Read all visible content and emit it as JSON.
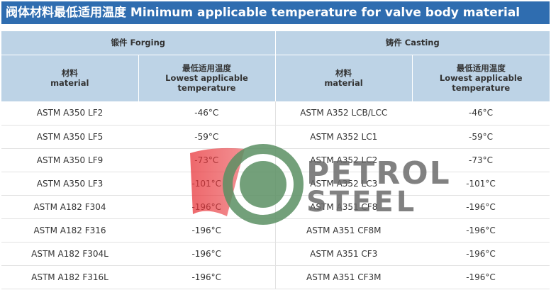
{
  "title": "阀体材料最低适用温度  Minimum applicable temperature for valve body material",
  "colors": {
    "title_bg": "#2f6db0",
    "header_bg": "#bdd3e6"
  },
  "groups": {
    "forging": "锻件 Forging",
    "casting": "铸件 Casting"
  },
  "subheaders": {
    "material_cn": "材料",
    "material_en": "material",
    "temp_cn": "最低适用温度",
    "temp_en_1": "Lowest applicable",
    "temp_en_2": "temperature"
  },
  "rows": [
    {
      "forging_material": "ASTM A350 LF2",
      "forging_temp": "-46°C",
      "casting_material": "ASTM A352 LCB/LCC",
      "casting_temp": "-46°C"
    },
    {
      "forging_material": "ASTM A350 LF5",
      "forging_temp": "-59°C",
      "casting_material": "ASTM A352 LC1",
      "casting_temp": "-59°C"
    },
    {
      "forging_material": "ASTM A350 LF9",
      "forging_temp": "-73°C",
      "casting_material": "ASTM A352 LC2",
      "casting_temp": "-73°C"
    },
    {
      "forging_material": "ASTM A350 LF3",
      "forging_temp": "-101°C",
      "casting_material": "ASTM A352 LC3",
      "casting_temp": "-101°C"
    },
    {
      "forging_material": "ASTM A182 F304",
      "forging_temp": "-196°C",
      "casting_material": "ASTM A351 CF8",
      "casting_temp": "-196°C"
    },
    {
      "forging_material": "ASTM A182 F316",
      "forging_temp": "-196°C",
      "casting_material": "ASTM A351 CF8M",
      "casting_temp": "-196°C"
    },
    {
      "forging_material": "ASTM A182 F304L",
      "forging_temp": "-196°C",
      "casting_material": "ASTM A351 CF3",
      "casting_temp": "-196°C"
    },
    {
      "forging_material": "ASTM A182 F316L",
      "forging_temp": "-196°C",
      "casting_material": "ASTM A351 CF3M",
      "casting_temp": "-196°C"
    }
  ],
  "watermark": {
    "line1": "PETROL",
    "line2": "STEEL"
  }
}
